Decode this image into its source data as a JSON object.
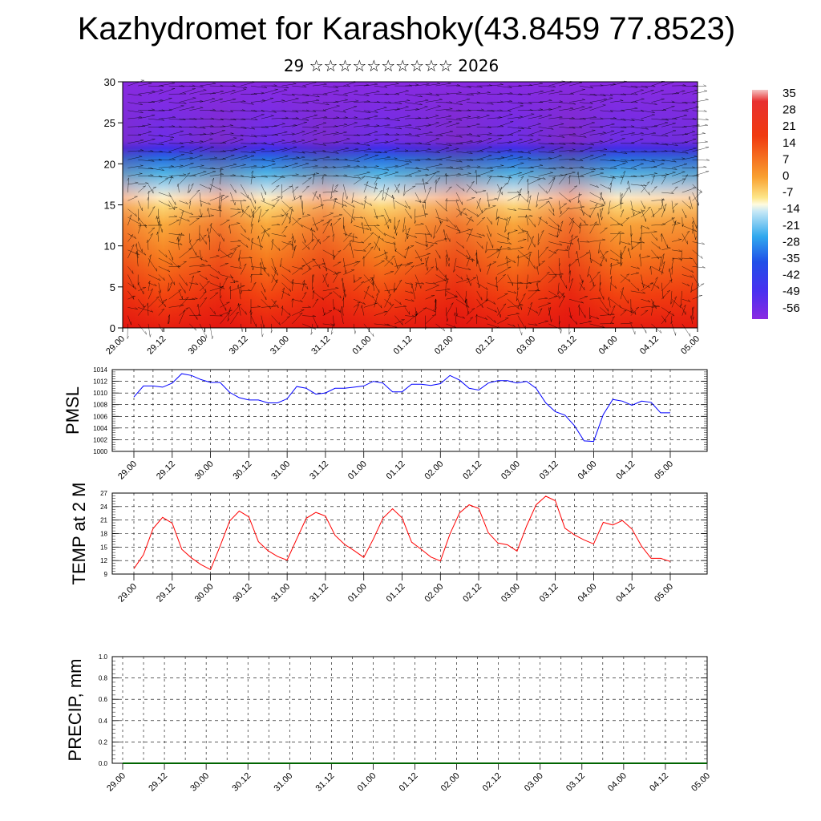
{
  "header": {
    "title": "Kazhydromet for Karashoky(43.8459 77.8523)",
    "subtitle": "29 ☆☆☆☆☆☆☆☆☆☆ 2026"
  },
  "colors": {
    "pmsl_line": "#0000ff",
    "temp_line": "#ff0000",
    "precip_line": "#006400",
    "vector_color": "#000000",
    "colormap": [
      "#f0b0b0",
      "#e01010",
      "#f04010",
      "#f87820",
      "#fbb040",
      "#fde68a",
      "#fefbd0",
      "#c8ecf8",
      "#58c8f0",
      "#1e90f0",
      "#2040e8",
      "#5030f0",
      "#8a2be2"
    ]
  },
  "chart_data": [
    {
      "id": "cross_section",
      "type": "heatmap",
      "description_fields": "temperature (colour) and wind vectors vs height",
      "x_tick_labels": [
        "29.00",
        "29.12",
        "30.00",
        "30.12",
        "31.00",
        "31.12",
        "01.00",
        "01.12",
        "02.00",
        "02.12",
        "03.00",
        "03.12",
        "04.00",
        "04.12",
        "05.00"
      ],
      "y_ticks": [
        0,
        5,
        10,
        15,
        20,
        25,
        30
      ],
      "ylim": [
        0,
        30
      ],
      "colorbar_labels": [
        "35",
        "28",
        "21",
        "14",
        "7",
        "0",
        "-7",
        "-14",
        "-21",
        "-28",
        "-35",
        "-42",
        "-49",
        "-56"
      ],
      "colorbar_range": [
        -63,
        42
      ]
    },
    {
      "id": "pmsl",
      "type": "line",
      "ylabel": "PMSL",
      "ylim": [
        1000,
        1014
      ],
      "y_ticks": [
        1000,
        1002,
        1004,
        1006,
        1008,
        1010,
        1012,
        1014
      ],
      "x_tick_labels": [
        "29.00",
        "29.12",
        "30.00",
        "30.12",
        "31.00",
        "31.12",
        "01.00",
        "01.12",
        "02.00",
        "02.12",
        "03.00",
        "03.12",
        "04.00",
        "04.12",
        "05.00"
      ],
      "x": [
        0,
        3,
        6,
        9,
        12,
        15,
        18,
        21,
        24,
        27,
        30,
        33,
        36,
        39,
        42,
        45,
        48,
        51,
        54,
        57,
        60,
        63,
        66,
        69,
        72,
        75,
        78,
        81,
        84,
        87,
        90,
        93,
        96,
        99,
        102,
        105,
        108,
        111,
        114,
        117,
        120,
        123,
        126,
        129,
        132,
        135,
        138,
        141,
        144,
        147,
        150,
        153,
        156,
        159,
        162,
        165,
        168
      ],
      "values": [
        1009.3,
        1011.2,
        1011.2,
        1011.0,
        1011.7,
        1013.3,
        1013.0,
        1012.3,
        1011.8,
        1011.8,
        1010.1,
        1009.2,
        1008.8,
        1008.8,
        1008.3,
        1008.3,
        1009.0,
        1011.1,
        1010.8,
        1009.8,
        1010.0,
        1010.8,
        1010.8,
        1011.0,
        1011.2,
        1012.0,
        1011.7,
        1010.2,
        1010.2,
        1011.5,
        1011.5,
        1011.3,
        1011.6,
        1013.0,
        1012.2,
        1010.8,
        1010.5,
        1011.7,
        1012.1,
        1012.1,
        1011.7,
        1012.0,
        1010.8,
        1008.3,
        1006.8,
        1006.2,
        1004.4,
        1001.8,
        1001.7,
        1006.3,
        1008.9,
        1008.6,
        1007.9,
        1008.6,
        1008.4,
        1006.6,
        1006.6
      ]
    },
    {
      "id": "temp2m",
      "type": "line",
      "ylabel": "TEMP at 2 M",
      "ylim": [
        9,
        27
      ],
      "y_ticks": [
        9,
        12,
        15,
        18,
        21,
        24,
        27
      ],
      "x_tick_labels": [
        "29.00",
        "29.12",
        "30.00",
        "30.12",
        "31.00",
        "31.12",
        "01.00",
        "01.12",
        "02.00",
        "02.12",
        "03.00",
        "03.12",
        "04.00",
        "04.12",
        "05.00"
      ],
      "x": [
        0,
        3,
        6,
        9,
        12,
        15,
        18,
        21,
        24,
        27,
        30,
        33,
        36,
        39,
        42,
        45,
        48,
        51,
        54,
        57,
        60,
        63,
        66,
        69,
        72,
        75,
        78,
        81,
        84,
        87,
        90,
        93,
        96,
        99,
        102,
        105,
        108,
        111,
        114,
        117,
        120,
        123,
        126,
        129,
        132,
        135,
        138,
        141,
        144,
        147,
        150,
        153,
        156,
        159,
        162,
        165,
        168
      ],
      "values": [
        10.2,
        13.3,
        19.1,
        21.6,
        20.3,
        14.5,
        12.6,
        11.1,
        10.0,
        15.2,
        20.8,
        23.0,
        21.7,
        16.2,
        14.2,
        12.9,
        12.1,
        16.8,
        21.4,
        22.7,
        21.9,
        17.6,
        15.6,
        14.2,
        12.7,
        16.8,
        21.4,
        23.5,
        21.5,
        16.1,
        14.5,
        12.8,
        11.9,
        17.9,
        22.6,
        24.4,
        23.6,
        18.2,
        15.9,
        15.5,
        14.1,
        19.7,
        24.4,
        26.3,
        25.3,
        19.2,
        17.7,
        16.6,
        15.7,
        20.5,
        19.9,
        20.9,
        19.0,
        15.2,
        12.5,
        12.5,
        11.8
      ]
    },
    {
      "id": "precip",
      "type": "line",
      "ylabel": "PRECIP, mm",
      "ylim": [
        0,
        1.0
      ],
      "y_ticks": [
        "0.0",
        "0.2",
        "0.4",
        "0.6",
        "0.8",
        "1.0"
      ],
      "x_tick_labels": [
        "29.00",
        "29.12",
        "30.00",
        "30.12",
        "31.00",
        "31.12",
        "01.00",
        "01.12",
        "02.00",
        "02.12",
        "03.00",
        "03.12",
        "04.00",
        "04.12",
        "05.00"
      ],
      "x": [
        0,
        168
      ],
      "values": [
        0,
        0
      ]
    }
  ]
}
